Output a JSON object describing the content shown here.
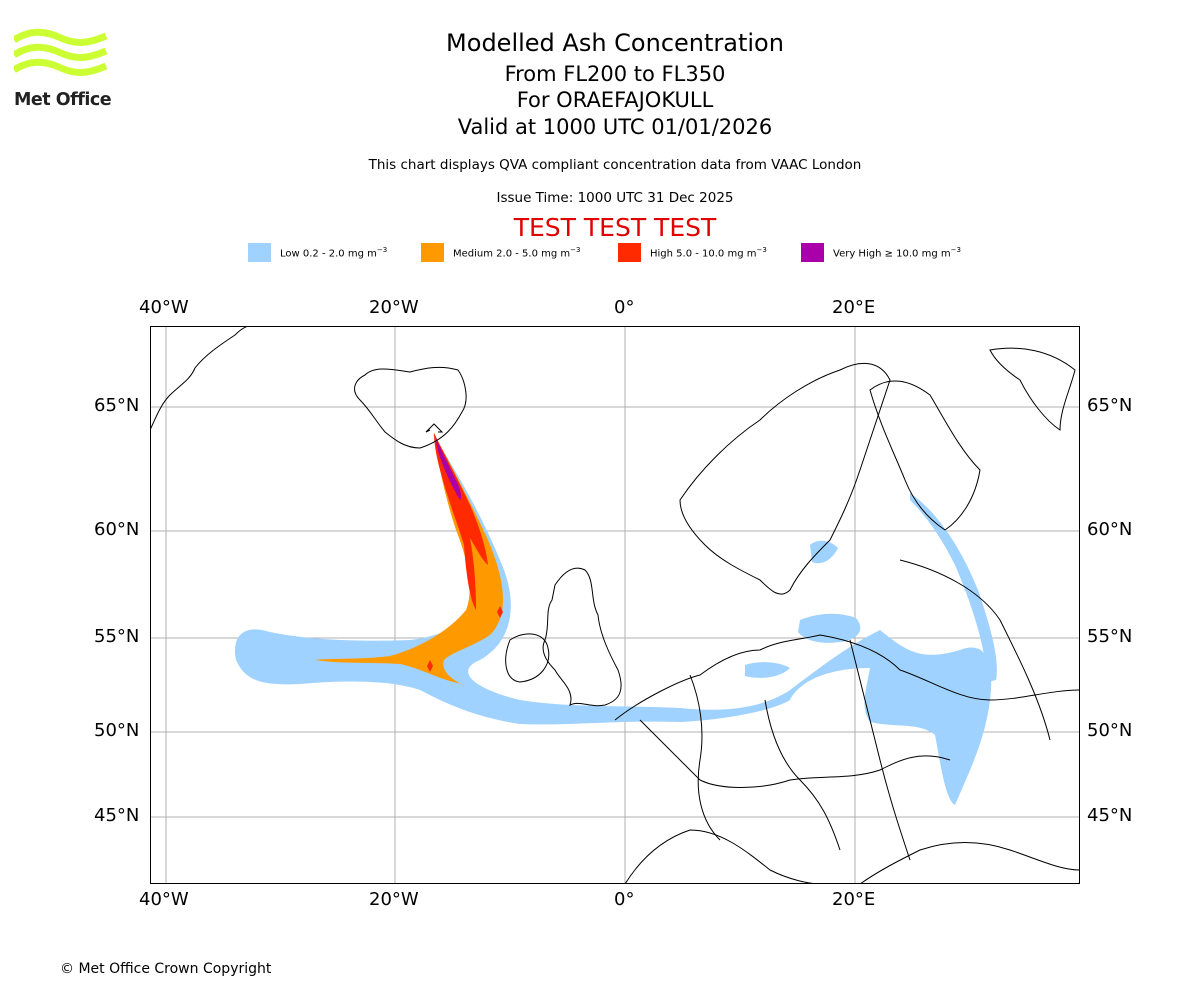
{
  "brand": {
    "name": "Met Office",
    "logo_color": "#ccff33"
  },
  "title": {
    "main": "Modelled Ash Concentration",
    "levels": "From FL200 to FL350",
    "volcano": "For ORAEFAJOKULL",
    "valid": "Valid at 1000 UTC 01/01/2026"
  },
  "subtitle": {
    "compliance": "This chart displays QVA compliant concentration data from VAAC London",
    "issue": "Issue Time: 1000 UTC 31 Dec 2025",
    "test_banner": "TEST TEST TEST"
  },
  "legend": [
    {
      "label": "Low 0.2 - 2.0 mg m",
      "exp": "−3",
      "color": "#a0d2ff"
    },
    {
      "label": "Medium 2.0 - 5.0 mg m",
      "exp": "−3",
      "color": "#ff9900"
    },
    {
      "label": "High 5.0 - 10.0 mg m",
      "exp": "−3",
      "color": "#ff2a00"
    },
    {
      "label": "Very High  ≥  10.0 mg m",
      "exp": "−3",
      "color": "#aa00aa"
    }
  ],
  "axes": {
    "longitude_labels": [
      "40°W",
      "20°W",
      "0°",
      "20°E"
    ],
    "latitude_labels": [
      "65°N",
      "60°N",
      "55°N",
      "50°N",
      "45°N"
    ]
  },
  "map": {
    "source_volcano": "ORAEFAJOKULL",
    "source_location": "Iceland",
    "ash_levels": [
      "Low",
      "Medium",
      "High",
      "Very High"
    ]
  },
  "footer": {
    "copyright": "© Met Office Crown Copyright"
  }
}
